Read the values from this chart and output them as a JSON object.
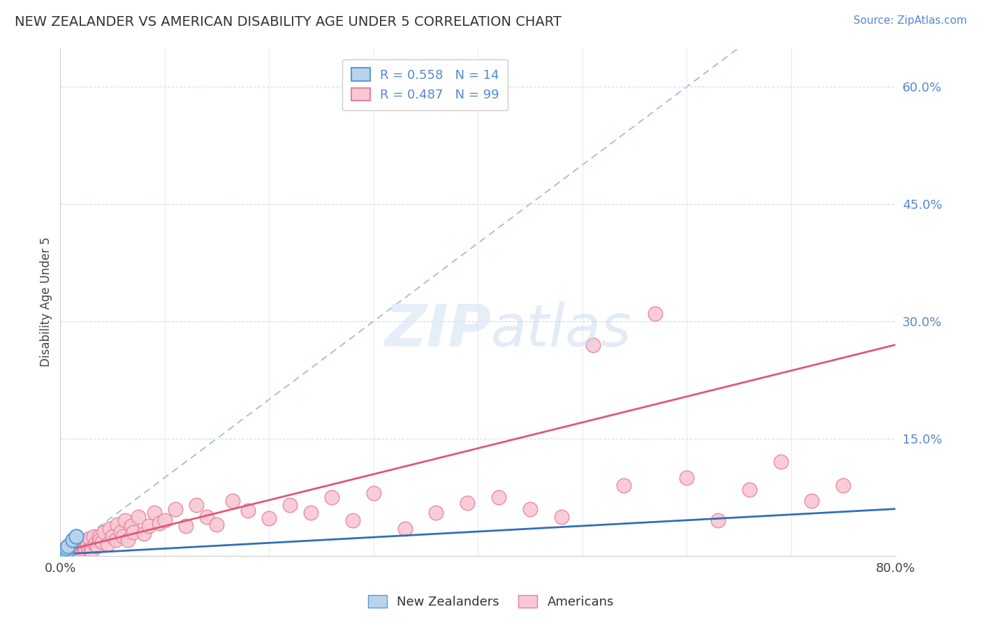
{
  "title": "NEW ZEALANDER VS AMERICAN DISABILITY AGE UNDER 5 CORRELATION CHART",
  "source": "Source: ZipAtlas.com",
  "ylabel": "Disability Age Under 5",
  "xlim": [
    0.0,
    0.8
  ],
  "ylim": [
    0.0,
    0.65
  ],
  "ytick_vals": [
    0.0,
    0.15,
    0.3,
    0.45,
    0.6
  ],
  "ytick_labels": [
    "",
    "15.0%",
    "30.0%",
    "45.0%",
    "60.0%"
  ],
  "xtick_labels": [
    "0.0%",
    "80.0%"
  ],
  "legend_nz_r": "R = 0.558",
  "legend_nz_n": "N = 14",
  "legend_am_r": "R = 0.487",
  "legend_am_n": "N = 99",
  "nz_color": "#b8d4ec",
  "nz_edge_color": "#5b9bd5",
  "am_color": "#f8c8d4",
  "am_edge_color": "#e8829a",
  "nz_line_color": "#3070b8",
  "am_line_color": "#e05878",
  "diagonal_color": "#9ab8d8",
  "background_color": "#ffffff",
  "grid_color": "#d0d8e8",
  "nz_x": [
    0.002,
    0.003,
    0.003,
    0.004,
    0.004,
    0.004,
    0.005,
    0.005,
    0.005,
    0.006,
    0.006,
    0.007,
    0.012,
    0.015
  ],
  "nz_y": [
    0.005,
    0.004,
    0.006,
    0.003,
    0.006,
    0.008,
    0.004,
    0.006,
    0.009,
    0.005,
    0.01,
    0.012,
    0.02,
    0.025
  ],
  "am_x": [
    0.002,
    0.003,
    0.003,
    0.004,
    0.004,
    0.005,
    0.005,
    0.005,
    0.006,
    0.006,
    0.007,
    0.007,
    0.008,
    0.008,
    0.009,
    0.009,
    0.01,
    0.01,
    0.01,
    0.011,
    0.011,
    0.012,
    0.012,
    0.013,
    0.013,
    0.014,
    0.014,
    0.015,
    0.015,
    0.016,
    0.017,
    0.018,
    0.018,
    0.019,
    0.02,
    0.02,
    0.021,
    0.022,
    0.022,
    0.023,
    0.024,
    0.025,
    0.026,
    0.027,
    0.028,
    0.029,
    0.03,
    0.032,
    0.033,
    0.035,
    0.037,
    0.038,
    0.04,
    0.042,
    0.045,
    0.047,
    0.05,
    0.053,
    0.055,
    0.058,
    0.06,
    0.062,
    0.065,
    0.068,
    0.07,
    0.075,
    0.08,
    0.085,
    0.09,
    0.095,
    0.1,
    0.11,
    0.12,
    0.13,
    0.14,
    0.15,
    0.165,
    0.18,
    0.2,
    0.22,
    0.24,
    0.26,
    0.28,
    0.3,
    0.33,
    0.36,
    0.39,
    0.42,
    0.45,
    0.48,
    0.51,
    0.54,
    0.57,
    0.6,
    0.63,
    0.66,
    0.69,
    0.72,
    0.75
  ],
  "am_y": [
    0.003,
    0.002,
    0.005,
    0.004,
    0.007,
    0.002,
    0.005,
    0.008,
    0.003,
    0.006,
    0.004,
    0.009,
    0.003,
    0.007,
    0.005,
    0.01,
    0.004,
    0.007,
    0.012,
    0.003,
    0.009,
    0.005,
    0.011,
    0.006,
    0.013,
    0.005,
    0.01,
    0.004,
    0.012,
    0.007,
    0.006,
    0.004,
    0.013,
    0.008,
    0.005,
    0.015,
    0.007,
    0.005,
    0.018,
    0.01,
    0.007,
    0.02,
    0.013,
    0.008,
    0.022,
    0.01,
    0.006,
    0.025,
    0.015,
    0.012,
    0.025,
    0.02,
    0.018,
    0.03,
    0.015,
    0.035,
    0.025,
    0.02,
    0.04,
    0.03,
    0.025,
    0.045,
    0.02,
    0.038,
    0.03,
    0.05,
    0.028,
    0.038,
    0.055,
    0.042,
    0.045,
    0.06,
    0.038,
    0.065,
    0.05,
    0.04,
    0.07,
    0.058,
    0.048,
    0.065,
    0.055,
    0.075,
    0.045,
    0.08,
    0.035,
    0.055,
    0.068,
    0.075,
    0.06,
    0.05,
    0.27,
    0.09,
    0.31,
    0.1,
    0.045,
    0.085,
    0.12,
    0.07,
    0.09
  ],
  "nz_line_x0": 0.0,
  "nz_line_x1": 0.8,
  "nz_line_y0": 0.002,
  "nz_line_y1": 0.06,
  "am_line_x0": 0.0,
  "am_line_x1": 0.8,
  "am_line_y0": 0.005,
  "am_line_y1": 0.27
}
